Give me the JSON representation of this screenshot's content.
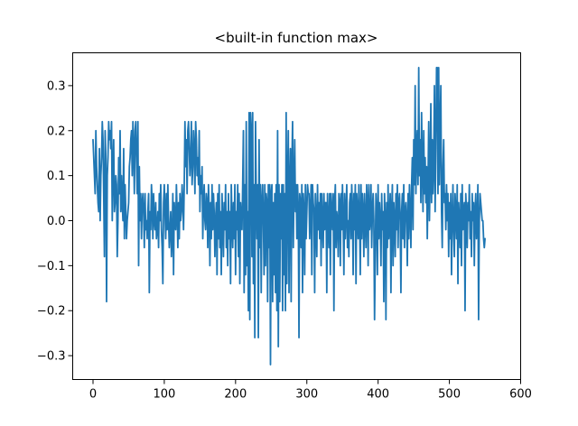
{
  "chart_data": {
    "type": "line",
    "title": "<built-in function max>",
    "xlabel": "",
    "ylabel": "",
    "xlim": [
      -28.5,
      600
    ],
    "ylim": [
      -0.353,
      0.373
    ],
    "xticks": [
      0,
      100,
      200,
      300,
      400,
      500,
      600
    ],
    "xtick_labels": [
      "0",
      "100",
      "200",
      "300",
      "400",
      "500",
      "600"
    ],
    "yticks": [
      -0.3,
      -0.2,
      -0.1,
      0.0,
      0.1,
      0.2,
      0.3
    ],
    "ytick_labels": [
      "−0.3",
      "−0.2",
      "−0.1",
      "0.0",
      "0.1",
      "0.2",
      "0.3"
    ],
    "grid": false,
    "series": [
      {
        "color": "#1f77b4",
        "x_start": 0,
        "x_step": 1,
        "values": [
          0.18,
          0.14,
          0.1,
          0.06,
          0.2,
          0.12,
          0.08,
          0.04,
          0.02,
          0.16,
          0.0,
          0.1,
          0.14,
          0.22,
          0.18,
          0.06,
          -0.08,
          0.2,
          0.14,
          -0.18,
          0.1,
          0.14,
          0.22,
          0.18,
          0.2,
          0.16,
          0.22,
          0.0,
          0.12,
          0.18,
          0.02,
          0.04,
          0.1,
          0.08,
          -0.08,
          0.0,
          0.14,
          0.06,
          0.2,
          0.02,
          0.1,
          0.04,
          0.0,
          0.16,
          -0.04,
          0.08,
          0.02,
          -0.04,
          0.0,
          0.02,
          0.04,
          0.12,
          0.14,
          0.18,
          0.2,
          0.1,
          0.22,
          0.16,
          0.06,
          0.2,
          0.22,
          0.14,
          0.06,
          0.22,
          -0.1,
          0.12,
          0.0,
          0.06,
          -0.04,
          0.04,
          0.06,
          0.02,
          -0.06,
          0.06,
          -0.02,
          0.0,
          -0.04,
          0.02,
          0.06,
          -0.16,
          0.02,
          -0.02,
          0.08,
          0.04,
          -0.04,
          0.06,
          0.0,
          -0.02,
          0.04,
          -0.04,
          -0.02,
          0.02,
          -0.06,
          0.06,
          0.0,
          0.08,
          -0.02,
          -0.06,
          -0.14,
          0.04,
          0.08,
          0.02,
          -0.04,
          0.06,
          -0.02,
          0.08,
          0.0,
          -0.06,
          -0.02,
          0.02,
          -0.08,
          -0.04,
          0.06,
          -0.12,
          0.04,
          0.0,
          -0.02,
          0.08,
          0.02,
          -0.06,
          0.04,
          -0.04,
          0.06,
          0.0,
          0.02,
          0.08,
          0.04,
          -0.02,
          0.08,
          0.22,
          0.12,
          0.18,
          0.06,
          0.2,
          0.22,
          0.16,
          0.1,
          0.14,
          0.22,
          0.08,
          0.12,
          0.2,
          0.16,
          0.06,
          0.22,
          0.18,
          0.1,
          0.14,
          0.08,
          0.2,
          0.02,
          0.1,
          0.06,
          0.12,
          -0.04,
          0.04,
          0.08,
          0.0,
          -0.02,
          0.06,
          0.04,
          -0.06,
          0.08,
          0.02,
          -0.1,
          0.04,
          -0.04,
          0.08,
          -0.02,
          0.06,
          0.02,
          -0.08,
          0.0,
          0.04,
          -0.12,
          0.06,
          -0.04,
          0.08,
          -0.06,
          0.02,
          -0.12,
          0.06,
          0.0,
          -0.08,
          0.04,
          -0.02,
          0.08,
          -0.06,
          0.02,
          -0.1,
          0.06,
          -0.04,
          0.02,
          -0.14,
          0.08,
          0.0,
          -0.06,
          0.04,
          -0.04,
          0.08,
          -0.12,
          0.02,
          -0.02,
          0.08,
          -0.08,
          0.06,
          -0.14,
          0.04,
          0.0,
          -0.02,
          0.08,
          0.2,
          -0.16,
          0.08,
          -0.12,
          0.22,
          -0.1,
          0.02,
          -0.2,
          0.24,
          -0.22,
          0.24,
          0.2,
          -0.08,
          0.24,
          -0.14,
          0.08,
          -0.26,
          0.22,
          0.06,
          -0.04,
          0.08,
          -0.26,
          0.18,
          -0.06,
          0.08,
          -0.16,
          0.04,
          0.08,
          0.0,
          -0.12,
          0.08,
          -0.1,
          0.06,
          0.04,
          -0.18,
          0.08,
          -0.06,
          0.08,
          -0.32,
          0.06,
          0.08,
          -0.18,
          0.04,
          -0.12,
          0.06,
          -0.16,
          0.08,
          -0.2,
          0.2,
          -0.28,
          0.08,
          -0.18,
          0.06,
          -0.04,
          0.08,
          -0.2,
          0.08,
          -0.12,
          0.06,
          -0.2,
          0.24,
          -0.14,
          0.08,
          0.2,
          -0.16,
          0.08,
          0.16,
          -0.18,
          0.12,
          0.22,
          -0.06,
          0.08,
          0.18,
          0.02,
          0.08,
          -0.04,
          0.08,
          0.02,
          -0.26,
          0.06,
          0.04,
          -0.06,
          0.08,
          -0.16,
          0.06,
          0.02,
          -0.12,
          0.08,
          -0.04,
          0.02,
          0.08,
          0.06,
          0.06,
          -0.04,
          0.02,
          0.08,
          -0.12,
          0.08,
          0.04,
          0.02,
          -0.16,
          0.06,
          0.0,
          -0.08,
          0.08,
          -0.02,
          0.04,
          -0.04,
          0.06,
          -0.1,
          0.06,
          0.0,
          -0.06,
          0.06,
          -0.02,
          0.04,
          0.04,
          -0.16,
          0.06,
          0.0,
          -0.06,
          0.06,
          -0.12,
          0.06,
          0.02,
          -0.02,
          0.06,
          -0.2,
          0.04,
          0.08,
          -0.06,
          0.02,
          0.0,
          -0.08,
          0.06,
          0.04,
          -0.1,
          0.06,
          -0.02,
          0.08,
          0.0,
          -0.12,
          0.06,
          -0.04,
          0.02,
          0.08,
          -0.06,
          0.0,
          -0.08,
          0.04,
          0.06,
          -0.04,
          0.08,
          0.02,
          -0.12,
          0.06,
          -0.02,
          0.08,
          -0.14,
          0.06,
          0.02,
          -0.04,
          0.08,
          0.0,
          -0.12,
          0.08,
          -0.04,
          0.06,
          0.02,
          -0.08,
          0.06,
          0.0,
          -0.06,
          0.08,
          0.04,
          -0.1,
          0.08,
          -0.02,
          0.0,
          0.08,
          -0.06,
          0.02,
          0.06,
          0.0,
          -0.22,
          -0.08,
          0.06,
          0.02,
          -0.12,
          0.08,
          -0.04,
          0.04,
          0.0,
          -0.1,
          0.06,
          -0.02,
          0.02,
          -0.18,
          0.06,
          0.0,
          -0.22,
          0.04,
          -0.06,
          0.08,
          -0.04,
          0.0,
          0.06,
          -0.16,
          0.02,
          0.08,
          -0.1,
          0.04,
          0.0,
          -0.08,
          0.06,
          -0.02,
          0.08,
          -0.06,
          0.04,
          0.06,
          0.0,
          -0.16,
          0.02,
          0.06,
          -0.04,
          0.08,
          -0.06,
          0.02,
          0.04,
          0.0,
          -0.1,
          0.06,
          -0.04,
          0.08,
          0.02,
          -0.06,
          0.08,
          0.14,
          -0.02,
          0.18,
          0.08,
          0.3,
          0.06,
          0.16,
          0.2,
          0.08,
          0.34,
          0.1,
          0.18,
          0.04,
          0.24,
          0.12,
          0.02,
          0.2,
          0.06,
          0.14,
          0.04,
          0.12,
          -0.04,
          0.08,
          0.22,
          0.0,
          0.1,
          0.26,
          0.04,
          0.18,
          0.06,
          0.12,
          0.3,
          0.02,
          0.16,
          0.34,
          0.34,
          0.06,
          0.34,
          0.08,
          0.2,
          0.3,
          0.02,
          -0.06,
          0.12,
          0.18,
          0.04,
          0.06,
          -0.02,
          0.08,
          0.0,
          0.06,
          -0.08,
          0.04,
          -0.04,
          0.06,
          -0.12,
          0.0,
          0.08,
          -0.02,
          -0.08,
          0.06,
          0.02,
          -0.04,
          0.08,
          -0.14,
          0.04,
          0.0,
          -0.06,
          0.06,
          -0.1,
          0.08,
          -0.02,
          0.02,
          0.04,
          -0.2,
          0.06,
          0.02,
          -0.06,
          0.04,
          0.0,
          0.08,
          -0.04,
          0.02,
          -0.08,
          0.06,
          0.0,
          0.04,
          -0.1,
          0.02,
          0.06,
          -0.04,
          0.0,
          0.08,
          -0.22,
          0.0,
          0.06,
          0.04,
          0.02,
          0.0,
          0.0,
          -0.04,
          -0.06,
          -0.04
        ]
      }
    ]
  }
}
